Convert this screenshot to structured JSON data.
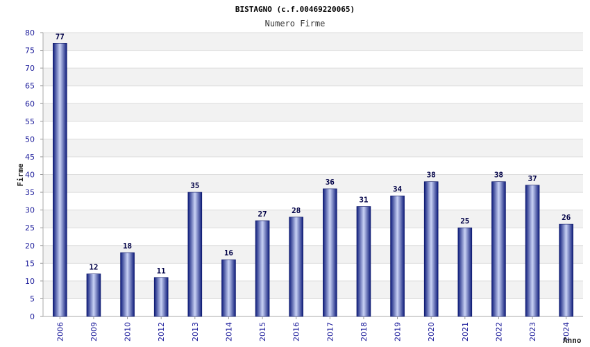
{
  "chart_data": {
    "type": "bar",
    "title": "BISTAGNO (c.f.00469220065)",
    "subtitle": "Numero Firme",
    "xlabel": "Anno",
    "ylabel": "Firme",
    "ylim": [
      0,
      80
    ],
    "ytick_step": 5,
    "grid": true,
    "categories": [
      "2006",
      "2009",
      "2010",
      "2012",
      "2013",
      "2014",
      "2015",
      "2016",
      "2017",
      "2018",
      "2019",
      "2020",
      "2021",
      "2022",
      "2023",
      "2024"
    ],
    "values": [
      77,
      12,
      18,
      11,
      35,
      16,
      27,
      28,
      36,
      31,
      34,
      38,
      25,
      38,
      37,
      26
    ],
    "colors": {
      "bar_dark": "#0d1b7a",
      "bar_light": "#c9d2f5",
      "stripe": "#f2f2f2",
      "grid": "#dcdcdc",
      "tick": "#1a1a9a"
    }
  }
}
